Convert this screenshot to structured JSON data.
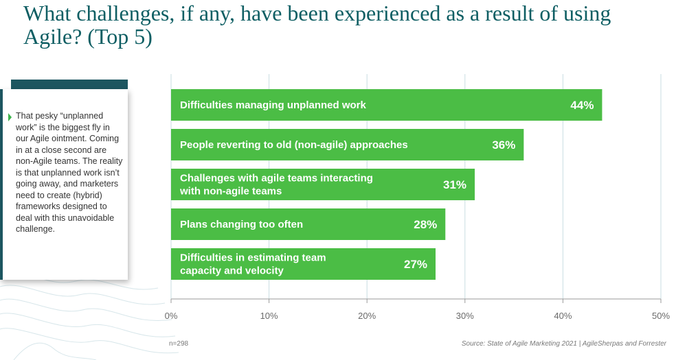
{
  "title": "What challenges, if any, have been experienced as a result of using Agile? (Top 5)",
  "callout": {
    "text": "That pesky “unplanned work” is the biggest fly in our Agile ointment. Coming in at a close second are non-Agile teams. The reality is that unplanned work isn’t going away, and marketers need to create (hybrid) frameworks designed to deal with this unavoidable challenge."
  },
  "colors": {
    "bar": "#4bbd45",
    "title": "#0e5e63",
    "accent": "#1d5660",
    "grid": "#c9dde2"
  },
  "chart_data": {
    "type": "bar",
    "orientation": "horizontal",
    "title": "What challenges, if any, have been experienced as a result of using Agile? (Top 5)",
    "categories": [
      [
        "Difficulties managing unplanned work"
      ],
      [
        "People reverting to old (non-agile) approaches"
      ],
      [
        "Challenges with agile teams interacting",
        "with non-agile teams"
      ],
      [
        "Plans changing too often"
      ],
      [
        "Difficulties in estimating team",
        "capacity and velocity"
      ]
    ],
    "values": [
      44,
      36,
      31,
      28,
      27
    ],
    "value_labels": [
      "44%",
      "36%",
      "31%",
      "28%",
      "27%"
    ],
    "xlim": [
      0,
      50
    ],
    "xticks": [
      0,
      10,
      20,
      30,
      40,
      50
    ],
    "xtick_labels": [
      "0%",
      "10%",
      "20%",
      "30%",
      "40%",
      "50%"
    ],
    "grid": true
  },
  "footer": {
    "n": "n=298",
    "source": "Source: State of Agile Marketing 2021 | AgileSherpas and Forrester"
  }
}
